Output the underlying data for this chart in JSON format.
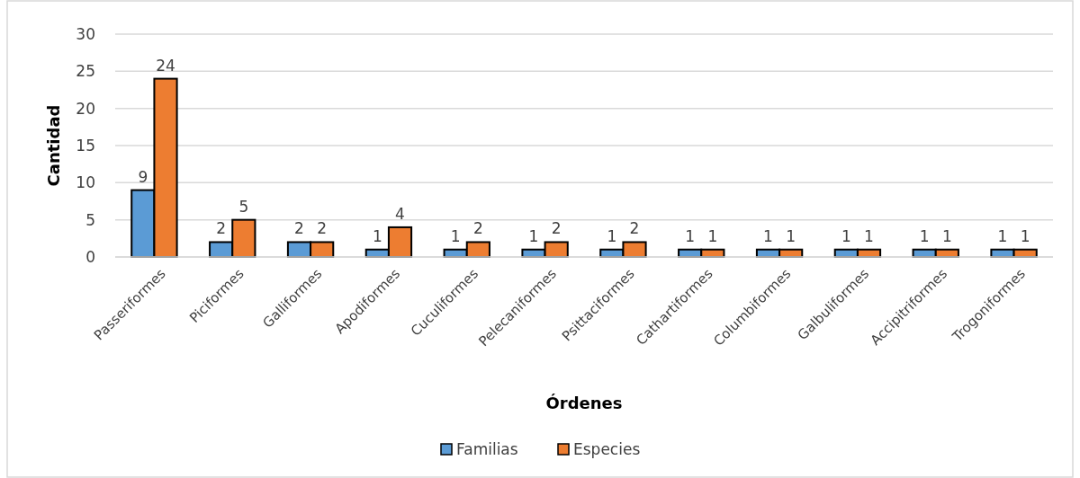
{
  "chart_data": {
    "type": "bar",
    "xlabel": "Órdenes",
    "ylabel": "Cantidad",
    "categories": [
      "Passeriformes",
      "Piciformes",
      "Galliformes",
      "Apodiformes",
      "Cuculiformes",
      "Pelecaniformes",
      "Psittaciformes",
      "Cathartiformes",
      "Columbiformes",
      "Galbuliformes",
      "Accipitriformes",
      "Trogoniformes"
    ],
    "series": [
      {
        "name": "Familias",
        "color": "#5b9bd5",
        "values": [
          9,
          2,
          2,
          1,
          1,
          1,
          1,
          1,
          1,
          1,
          1,
          1
        ]
      },
      {
        "name": "Especies",
        "color": "#ed7d31",
        "values": [
          24,
          5,
          2,
          4,
          2,
          2,
          2,
          1,
          1,
          1,
          1,
          1
        ]
      }
    ],
    "ylim": [
      0,
      30
    ],
    "yticks": [
      0,
      5,
      10,
      15,
      20,
      25,
      30
    ],
    "grid": "y",
    "legend": "bottom",
    "data_labels": true
  }
}
